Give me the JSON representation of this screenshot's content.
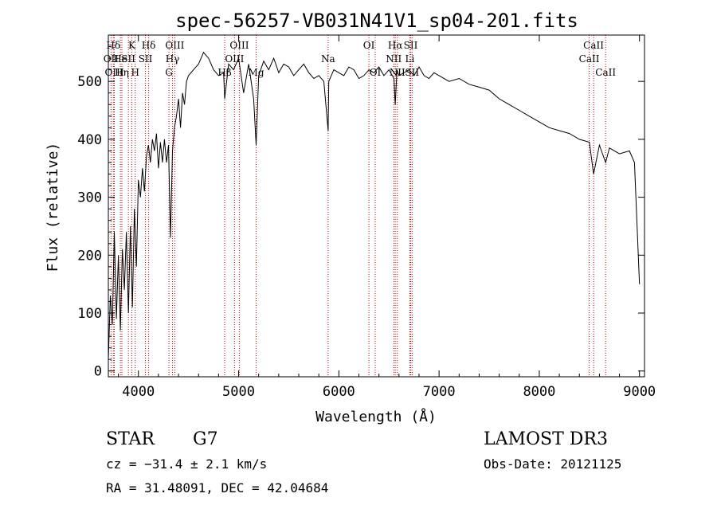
{
  "chart_data": {
    "type": "line",
    "title": "spec-56257-VB031N41V1_sp04-201.fits",
    "xlabel": "Wavelength (Å)",
    "ylabel": "Flux (relative)",
    "xlim": [
      3700,
      9050
    ],
    "ylim": [
      -10,
      580
    ],
    "xticks": [
      4000,
      5000,
      6000,
      7000,
      8000,
      9000
    ],
    "yticks": [
      0,
      100,
      200,
      300,
      400,
      500
    ],
    "series": [
      {
        "name": "flux",
        "x": [
          3700,
          3720,
          3740,
          3760,
          3780,
          3800,
          3820,
          3840,
          3860,
          3880,
          3900,
          3920,
          3940,
          3960,
          3980,
          4000,
          4020,
          4040,
          4060,
          4080,
          4100,
          4120,
          4140,
          4160,
          4180,
          4200,
          4220,
          4240,
          4260,
          4280,
          4300,
          4320,
          4340,
          4360,
          4380,
          4400,
          4420,
          4440,
          4460,
          4480,
          4500,
          4550,
          4600,
          4650,
          4700,
          4750,
          4800,
          4850,
          4861,
          4900,
          4950,
          5000,
          5050,
          5100,
          5150,
          5175,
          5200,
          5250,
          5300,
          5350,
          5400,
          5450,
          5500,
          5550,
          5600,
          5650,
          5700,
          5750,
          5800,
          5850,
          5893,
          5900,
          5950,
          6000,
          6050,
          6100,
          6150,
          6200,
          6250,
          6300,
          6350,
          6400,
          6450,
          6500,
          6550,
          6563,
          6580,
          6600,
          6650,
          6700,
          6750,
          6800,
          6850,
          6900,
          6950,
          7000,
          7100,
          7200,
          7300,
          7400,
          7500,
          7600,
          7700,
          7800,
          7900,
          8000,
          8100,
          8200,
          8300,
          8400,
          8500,
          8542,
          8600,
          8662,
          8700,
          8800,
          8900,
          8950,
          9000
        ],
        "values": [
          20,
          130,
          80,
          240,
          90,
          200,
          70,
          210,
          140,
          240,
          100,
          250,
          110,
          280,
          180,
          330,
          300,
          350,
          310,
          370,
          390,
          360,
          400,
          380,
          410,
          350,
          395,
          360,
          400,
          360,
          390,
          230,
          380,
          420,
          440,
          470,
          420,
          480,
          460,
          500,
          510,
          520,
          530,
          550,
          540,
          520,
          510,
          515,
          470,
          530,
          520,
          540,
          480,
          530,
          470,
          390,
          510,
          535,
          520,
          540,
          515,
          530,
          525,
          510,
          520,
          530,
          515,
          505,
          510,
          500,
          415,
          500,
          520,
          515,
          510,
          525,
          520,
          505,
          510,
          520,
          515,
          525,
          510,
          520,
          505,
          460,
          520,
          510,
          515,
          520,
          510,
          525,
          510,
          505,
          515,
          510,
          500,
          505,
          495,
          490,
          485,
          470,
          460,
          450,
          440,
          430,
          420,
          415,
          410,
          400,
          395,
          340,
          390,
          360,
          385,
          375,
          380,
          360,
          150
        ]
      }
    ],
    "lines": [
      {
        "label": "Hδ",
        "x": 3750,
        "row": 0
      },
      {
        "label": "OII",
        "x": 3727,
        "row": 1
      },
      {
        "label": "OIII",
        "x": 3760,
        "row": 2
      },
      {
        "label": "He",
        "x": 3820,
        "row": 1
      },
      {
        "label": "Hη",
        "x": 3835,
        "row": 2
      },
      {
        "label": "K",
        "x": 3934,
        "row": 0
      },
      {
        "label": "SII",
        "x": 3900,
        "row": 1
      },
      {
        "label": "H",
        "x": 3968,
        "row": 2
      },
      {
        "label": "Hδ",
        "x": 4102,
        "row": 0
      },
      {
        "label": "SII",
        "x": 4070,
        "row": 1
      },
      {
        "label": "OIII",
        "x": 4363,
        "row": 0
      },
      {
        "label": "Hγ",
        "x": 4340,
        "row": 1
      },
      {
        "label": "G",
        "x": 4305,
        "row": 2
      },
      {
        "label": "OIII",
        "x": 5007,
        "row": 0
      },
      {
        "label": "OIII",
        "x": 4959,
        "row": 1
      },
      {
        "label": "Hβ",
        "x": 4861,
        "row": 2
      },
      {
        "label": "Mg",
        "x": 5175,
        "row": 2
      },
      {
        "label": "Na",
        "x": 5893,
        "row": 1
      },
      {
        "label": "OI",
        "x": 6300,
        "row": 0
      },
      {
        "label": "OI",
        "x": 6363,
        "row": 2
      },
      {
        "label": "Hα",
        "x": 6563,
        "row": 0
      },
      {
        "label": "SII",
        "x": 6717,
        "row": 0
      },
      {
        "label": "NII",
        "x": 6548,
        "row": 1
      },
      {
        "label": "Li",
        "x": 6708,
        "row": 1
      },
      {
        "label": "NII",
        "x": 6584,
        "row": 2
      },
      {
        "label": "SII",
        "x": 6731,
        "row": 2
      },
      {
        "label": "CaII",
        "x": 8542,
        "row": 0
      },
      {
        "label": "CaII",
        "x": 8498,
        "row": 1
      },
      {
        "label": "CaII",
        "x": 8662,
        "row": 2
      }
    ]
  },
  "info": {
    "class": "STAR",
    "subclass": "G7",
    "survey": "LAMOST DR3",
    "cz": "cz = −31.4 ± 2.1 km/s",
    "obs_date": "Obs-Date: 20121125",
    "coords": "RA =  31.48091, DEC =  42.04684"
  }
}
